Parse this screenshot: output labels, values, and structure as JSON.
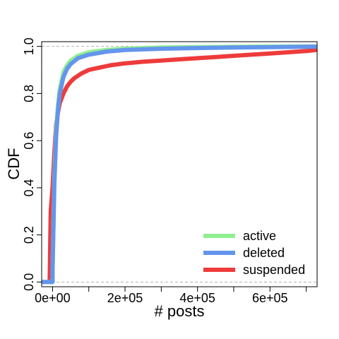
{
  "chart_data": {
    "type": "line",
    "xlabel": "# posts",
    "ylabel": "CDF",
    "xlim": [
      -30000,
      730000
    ],
    "ylim": [
      -0.02,
      1.02
    ],
    "x_ticks": [
      0,
      100000,
      200000,
      300000,
      400000,
      500000,
      600000,
      700000
    ],
    "x_tick_labels": [
      "0e+00",
      "",
      "2e+05",
      "",
      "4e+05",
      "",
      "6e+05",
      ""
    ],
    "y_ticks": [
      0,
      0.2,
      0.4,
      0.6,
      0.8,
      1.0
    ],
    "y_tick_labels": [
      "0.0",
      "0.2",
      "0.4",
      "0.6",
      "0.8",
      "1.0"
    ],
    "reference_lines_y": [
      0,
      1
    ],
    "legend_position": "bottom-right",
    "series": [
      {
        "name": "active",
        "color": "#90EE90",
        "x": [
          -30000,
          0,
          0,
          5000,
          10000,
          15000,
          20000,
          30000,
          40000,
          50000,
          70000,
          100000,
          150000,
          200000,
          300000,
          400000,
          500000,
          600000,
          730000
        ],
        "y": [
          0,
          0,
          0.05,
          0.45,
          0.65,
          0.75,
          0.82,
          0.89,
          0.92,
          0.94,
          0.96,
          0.975,
          0.985,
          0.99,
          0.995,
          0.997,
          0.998,
          0.999,
          1.0
        ]
      },
      {
        "name": "deleted",
        "color": "#6495ED",
        "x": [
          -30000,
          0,
          0,
          5000,
          10000,
          15000,
          20000,
          30000,
          40000,
          50000,
          70000,
          100000,
          150000,
          200000,
          300000,
          400000,
          500000,
          600000,
          730000
        ],
        "y": [
          0,
          0,
          0.05,
          0.42,
          0.62,
          0.73,
          0.8,
          0.87,
          0.905,
          0.925,
          0.95,
          0.965,
          0.978,
          0.985,
          0.99,
          0.993,
          0.995,
          0.997,
          0.999
        ]
      },
      {
        "name": "suspended",
        "color": "#EE3B3B",
        "x": [
          -8000,
          -5000,
          0,
          5000,
          10000,
          15000,
          20000,
          30000,
          40000,
          50000,
          60000,
          80000,
          100000,
          130000,
          160000,
          200000,
          250000,
          300000,
          350000,
          400000,
          450000,
          500000,
          550000,
          600000,
          650000,
          700000,
          730000
        ],
        "y": [
          0.0,
          0.3,
          0.4,
          0.55,
          0.67,
          0.72,
          0.76,
          0.8,
          0.83,
          0.85,
          0.865,
          0.885,
          0.9,
          0.91,
          0.92,
          0.928,
          0.935,
          0.94,
          0.945,
          0.95,
          0.955,
          0.96,
          0.965,
          0.97,
          0.975,
          0.98,
          0.985
        ]
      }
    ]
  }
}
